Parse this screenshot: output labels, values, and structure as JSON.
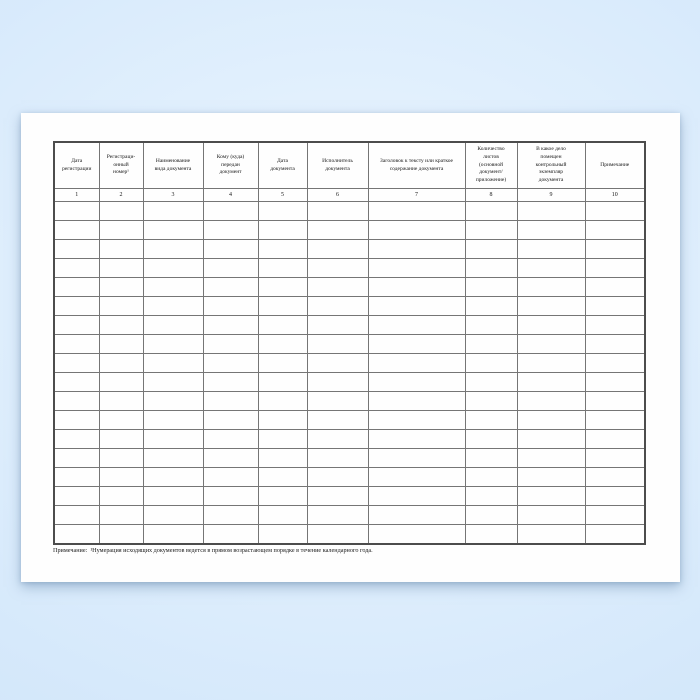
{
  "page": {
    "background_color": "#d6e9fb",
    "paper_color": "#fefefe",
    "line_color": "#757575"
  },
  "table": {
    "columns": [
      {
        "number": "1",
        "label_lines": [
          "Дата",
          "регистрации"
        ]
      },
      {
        "number": "2",
        "label_lines": [
          "Регистраци-",
          "онный",
          "номер¹"
        ]
      },
      {
        "number": "3",
        "label_lines": [
          "Наименование",
          "вида документа"
        ]
      },
      {
        "number": "4",
        "label_lines": [
          "Кому (куда)",
          "передан",
          "документ"
        ]
      },
      {
        "number": "5",
        "label_lines": [
          "Дата",
          "документа"
        ]
      },
      {
        "number": "6",
        "label_lines": [
          "Исполнитель",
          "документа"
        ]
      },
      {
        "number": "7",
        "label_lines": [
          "Заголовок к тексту или краткое",
          "содержание документа"
        ]
      },
      {
        "number": "8",
        "label_lines": [
          "Количество",
          "листов",
          "(основной",
          "документ/",
          "приложение)"
        ]
      },
      {
        "number": "9",
        "label_lines": [
          "В какое дело",
          "помещен",
          "контрольный",
          "экземпляр",
          "документа"
        ]
      },
      {
        "number": "10",
        "label_lines": [
          "Примечание"
        ]
      }
    ],
    "empty_row_count": 18
  },
  "footnote": {
    "label": "Примечание:",
    "text": "¹Нумерация исходящих документов ведется в прямом возрастающем порядке в течение календарного года."
  }
}
